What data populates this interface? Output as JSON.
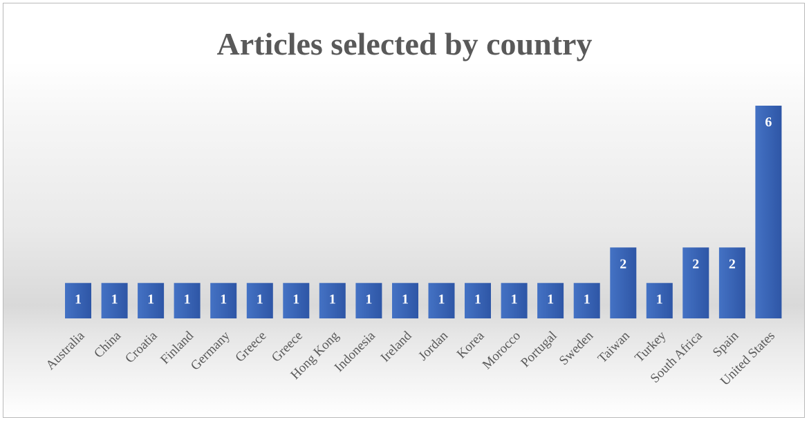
{
  "chart_data": {
    "type": "bar",
    "title": "Articles selected by country",
    "categories": [
      "Australia",
      "China",
      "Croatia",
      "Finland",
      "Germany",
      "Greece",
      "Greece",
      "Hong Kong",
      "Indonesia",
      "Ireland",
      "Jordan",
      "Korea",
      "Morocco",
      "Portugal",
      "Sweden",
      "Taiwan",
      "Turkey",
      "South Africa",
      "Spain",
      "United States"
    ],
    "values": [
      1,
      1,
      1,
      1,
      1,
      1,
      1,
      1,
      1,
      1,
      1,
      1,
      1,
      1,
      1,
      2,
      1,
      2,
      2,
      6
    ],
    "ylim": [
      0,
      6
    ],
    "grid": false,
    "legend": "none",
    "data_labels": true,
    "bar_color": "#4472c4",
    "bar_color_dark": "#2e56a6",
    "label_color": "#ffffff",
    "text_color": "#595959"
  }
}
